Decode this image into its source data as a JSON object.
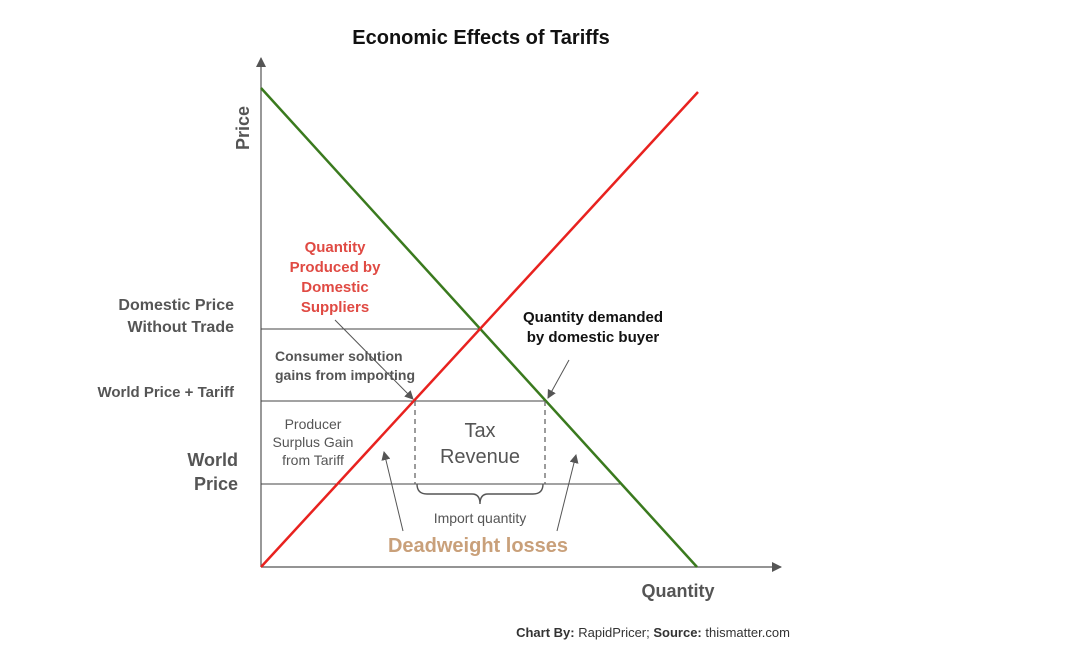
{
  "title": "Economic Effects of Tariffs",
  "axes": {
    "y_label": "Price",
    "x_label": "Quantity"
  },
  "price_levels": {
    "domestic_line1": "Domestic Price",
    "domestic_line2": "Without Trade",
    "world_plus_tariff": "World Price + Tariff",
    "world_line1": "World",
    "world_line2": "Price"
  },
  "annotations": {
    "qty_produced": [
      "Quantity",
      "Produced by",
      "Domestic",
      "Suppliers"
    ],
    "qty_demanded": [
      "Quantity demanded",
      "by domestic buyer"
    ],
    "consumer_gain": [
      "Consumer solution",
      "gains from importing"
    ],
    "producer_gain": [
      "Producer",
      "Surplus Gain",
      "from Tariff"
    ],
    "tax_revenue": [
      "Tax",
      "Revenue"
    ],
    "import_quantity": "Import quantity",
    "deadweight": "Deadweight losses"
  },
  "credit": {
    "chart_by_label": "Chart By:",
    "chart_by_value": " RapidPricer; ",
    "source_label": "Source:",
    "source_value": " thismatter.com"
  },
  "colors": {
    "supply": "#e8221f",
    "demand": "#3a7a1e",
    "axis": "#555555",
    "text_dark": "#222222",
    "text_gray": "#555555",
    "red_label": "#e04a43",
    "deadweight": "#c9a07a"
  },
  "curves": [
    {
      "id": "demand",
      "color_key": "demand"
    },
    {
      "id": "supply",
      "color_key": "supply"
    }
  ]
}
